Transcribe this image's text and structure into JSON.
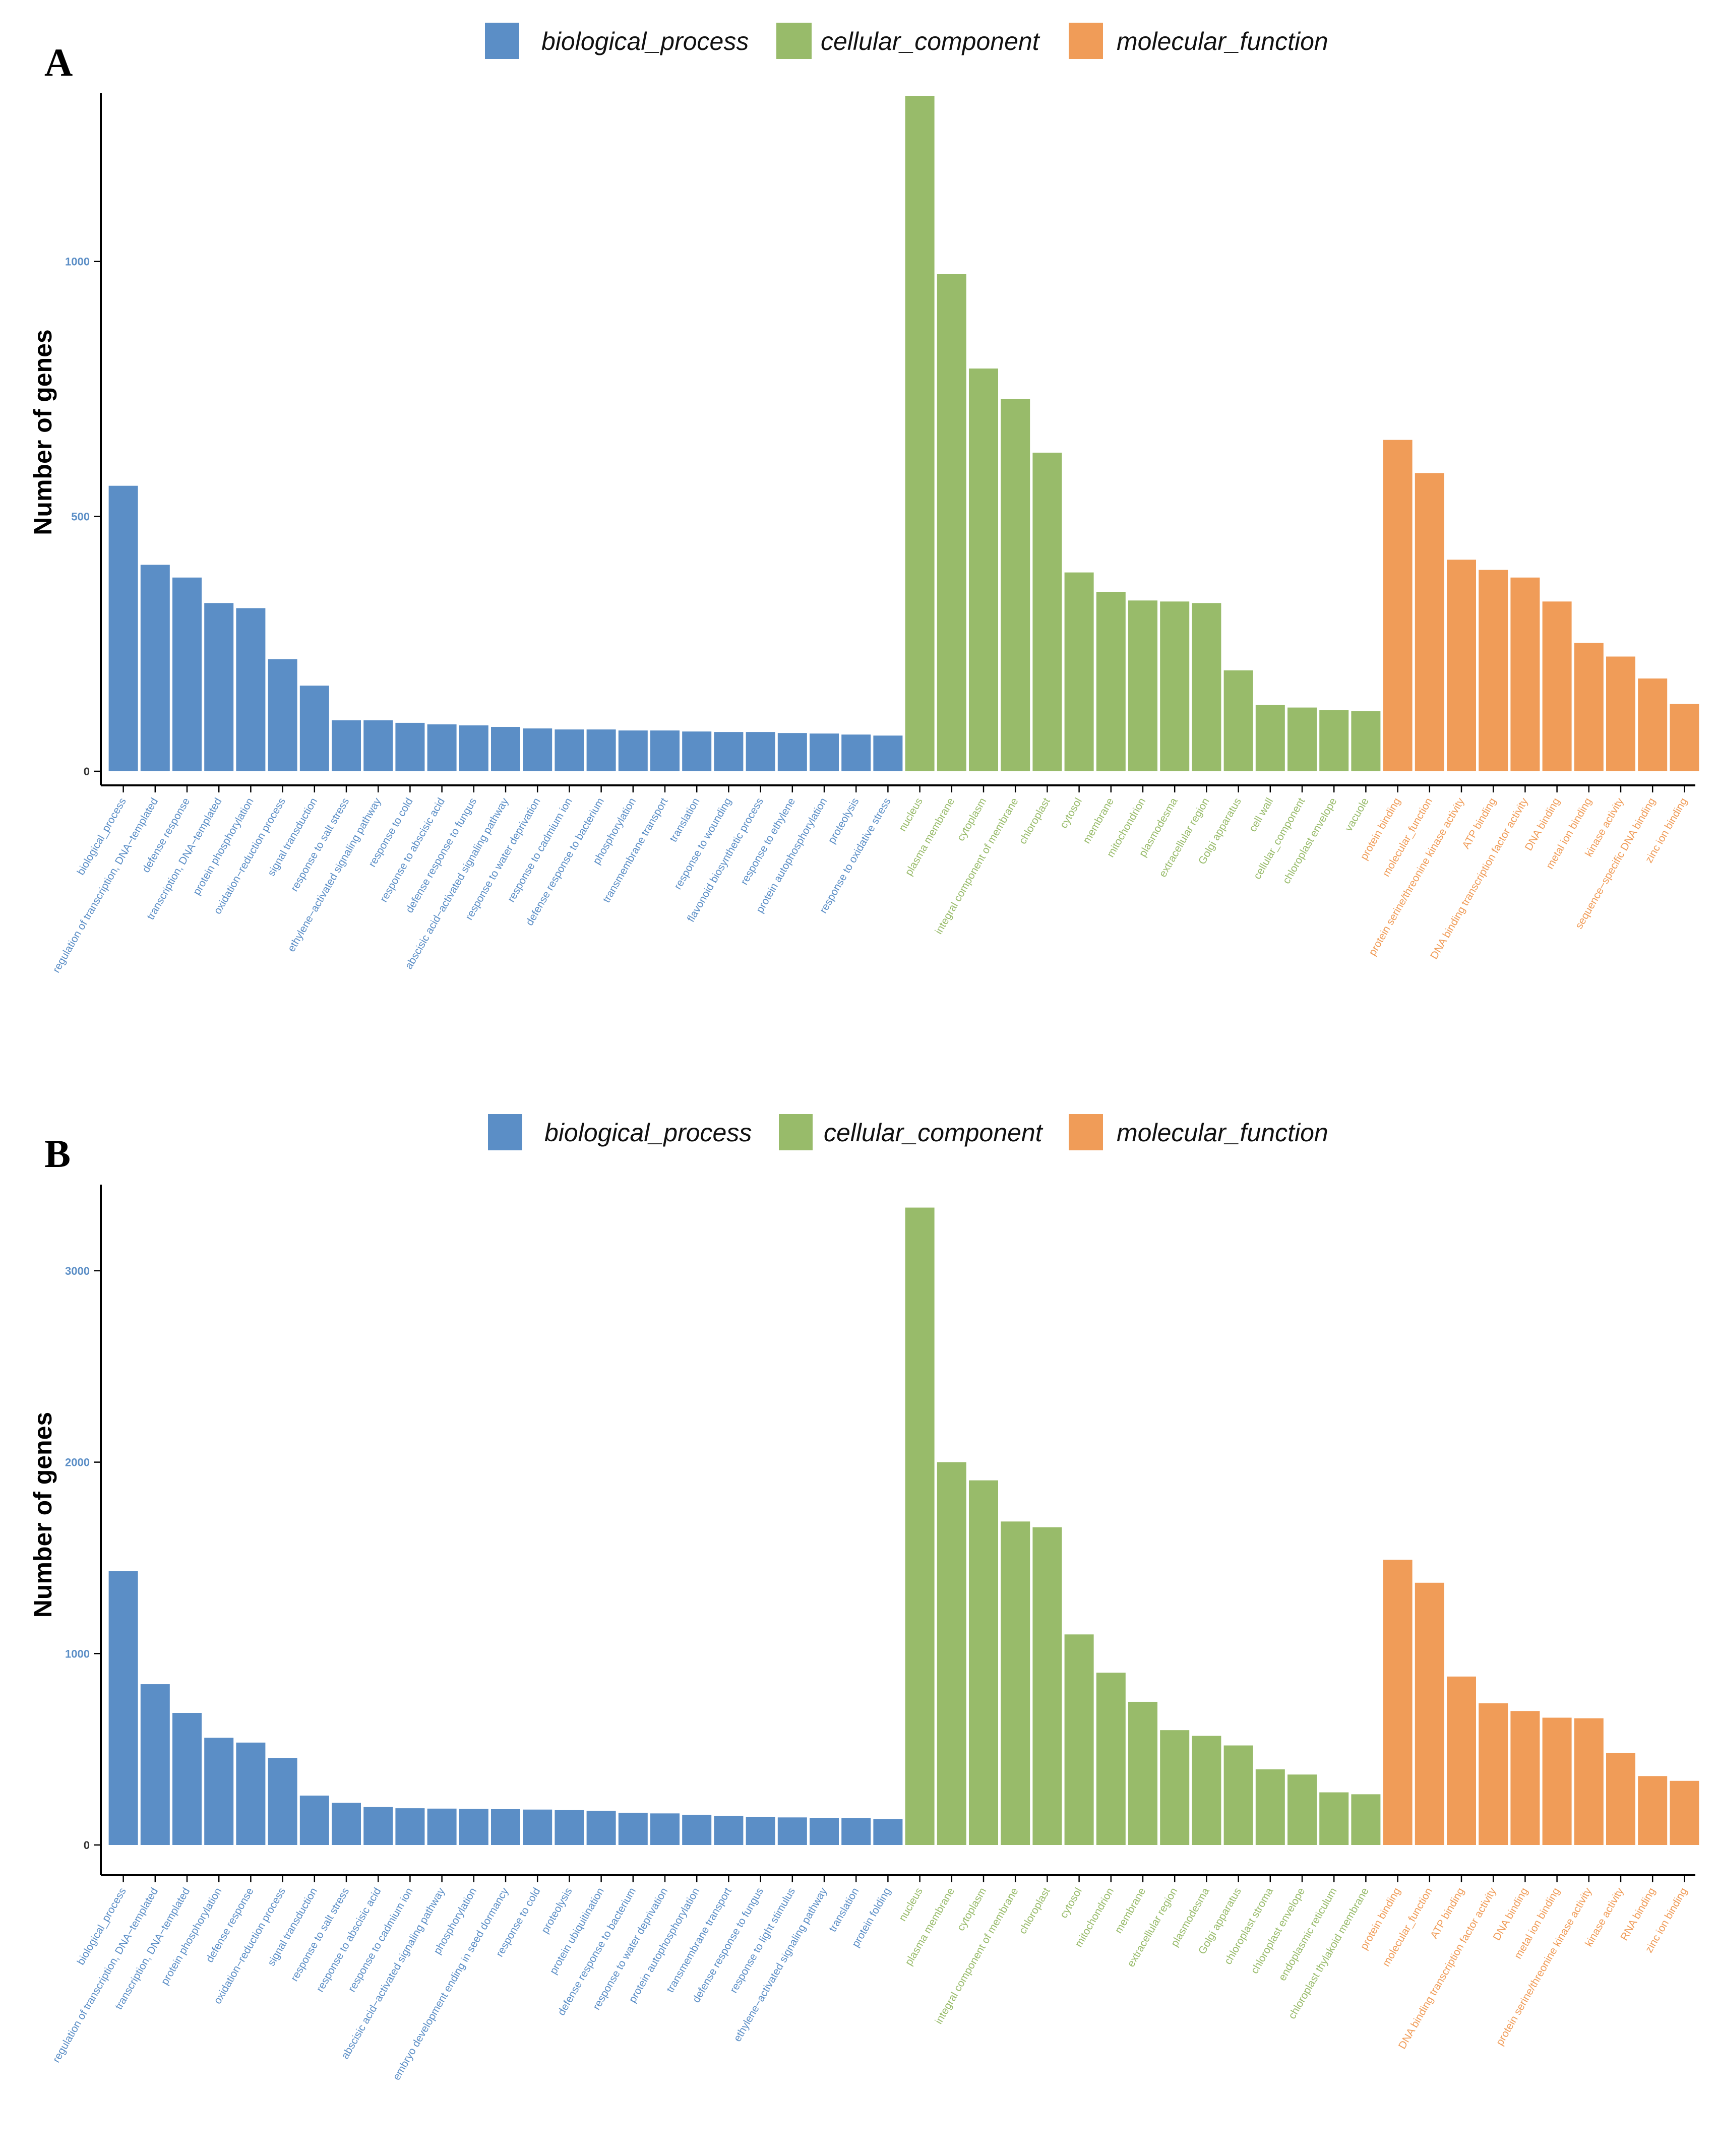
{
  "colors": {
    "biological_process": "#5b8ec6",
    "cellular_component": "#98bb6a",
    "molecular_function": "#f09c58"
  },
  "chart_data": [
    {
      "panel": "A",
      "type": "bar",
      "legend": [
        "biological_process",
        "cellular_component",
        "molecular_function"
      ],
      "legend_position": "top",
      "ylabel": "Number of genes",
      "xlabel": "",
      "ylim": [
        0,
        1330
      ],
      "yticks": [
        0,
        500,
        1000
      ],
      "grid": false,
      "categories": [
        "biological_process",
        "regulation of transcription, DNA−templated",
        "defense response",
        "transcription, DNA−templated",
        "protein phosphorylation",
        "oxidation−reduction process",
        "signal transduction",
        "response to salt stress",
        "ethylene−activated signaling pathway",
        "response to cold",
        "response to abscisic acid",
        "defense response to fungus",
        "abscisic acid−activated signaling pathway",
        "response to water deprivation",
        "response to cadmium ion",
        "defense response to bacterium",
        "phosphorylation",
        "transmembrane transport",
        "translation",
        "response to wounding",
        "flavonoid biosynthetic process",
        "response to ethylene",
        "protein autophosphorylation",
        "proteolysis",
        "response to oxidative stress",
        "nucleus",
        "plasma membrane",
        "cytoplasm",
        "integral component of membrane",
        "chloroplast",
        "cytosol",
        "membrane",
        "mitochondrion",
        "plasmodesma",
        "extracellular region",
        "Golgi apparatus",
        "cell wall",
        "cellular_component",
        "chloroplast envelope",
        "vacuole",
        "protein binding",
        "molecular_function",
        "protein serine/threonine kinase activity",
        "ATP binding",
        "DNA binding transcription factor activity",
        "DNA binding",
        "metal ion binding",
        "kinase activity",
        "sequence−specific DNA binding",
        "zinc ion binding"
      ],
      "groups": [
        "biological_process",
        "biological_process",
        "biological_process",
        "biological_process",
        "biological_process",
        "biological_process",
        "biological_process",
        "biological_process",
        "biological_process",
        "biological_process",
        "biological_process",
        "biological_process",
        "biological_process",
        "biological_process",
        "biological_process",
        "biological_process",
        "biological_process",
        "biological_process",
        "biological_process",
        "biological_process",
        "biological_process",
        "biological_process",
        "biological_process",
        "biological_process",
        "biological_process",
        "cellular_component",
        "cellular_component",
        "cellular_component",
        "cellular_component",
        "cellular_component",
        "cellular_component",
        "cellular_component",
        "cellular_component",
        "cellular_component",
        "cellular_component",
        "cellular_component",
        "cellular_component",
        "cellular_component",
        "cellular_component",
        "cellular_component",
        "molecular_function",
        "molecular_function",
        "molecular_function",
        "molecular_function",
        "molecular_function",
        "molecular_function",
        "molecular_function",
        "molecular_function",
        "molecular_function",
        "molecular_function"
      ],
      "values": [
        560,
        405,
        380,
        330,
        320,
        220,
        168,
        100,
        100,
        95,
        92,
        90,
        87,
        84,
        82,
        82,
        80,
        80,
        78,
        77,
        77,
        75,
        74,
        72,
        70,
        1325,
        975,
        790,
        730,
        625,
        390,
        352,
        335,
        333,
        330,
        198,
        130,
        125,
        120,
        118,
        650,
        585,
        415,
        395,
        380,
        333,
        252,
        225,
        182,
        132
      ]
    },
    {
      "panel": "B",
      "type": "bar",
      "legend": [
        "biological_process",
        "cellular_component",
        "molecular_function"
      ],
      "legend_position": "top",
      "ylabel": "Number of genes",
      "xlabel": "",
      "ylim": [
        0,
        3450
      ],
      "yticks": [
        0,
        1000,
        2000,
        3000
      ],
      "grid": false,
      "categories": [
        "biological_process",
        "regulation of transcription, DNA−templated",
        "transcription, DNA−templated",
        "protein phosphorylation",
        "defense response",
        "oxidation−reduction process",
        "signal transduction",
        "response to salt stress",
        "response to abscisic acid",
        "response to cadmium ion",
        "abscisic acid−activated signaling pathway",
        "phosphorylation",
        "embryo development ending in seed dormancy",
        "response to cold",
        "proteolysis",
        "protein ubiquitination",
        "defense response to bacterium",
        "response to water deprivation",
        "protein autophosphorylation",
        "transmembrane transport",
        "defense response to fungus",
        "response to light stimulus",
        "ethylene−activated signaling pathway",
        "translation",
        "protein folding",
        "nucleus",
        "plasma membrane",
        "cytoplasm",
        "integral component of membrane",
        "chloroplast",
        "cytosol",
        "mitochondrion",
        "membrane",
        "extracellular region",
        "plasmodesma",
        "Golgi apparatus",
        "chloroplast stroma",
        "chloroplast envelope",
        "endoplasmic reticulum",
        "chloroplast thylakoid membrane",
        "protein binding",
        "molecular_function",
        "ATP binding",
        "DNA binding transcription factor activity",
        "DNA binding",
        "metal ion binding",
        "protein serine/threonine kinase activity",
        "kinase activity",
        "RNA binding",
        "zinc ion binding"
      ],
      "groups": [
        "biological_process",
        "biological_process",
        "biological_process",
        "biological_process",
        "biological_process",
        "biological_process",
        "biological_process",
        "biological_process",
        "biological_process",
        "biological_process",
        "biological_process",
        "biological_process",
        "biological_process",
        "biological_process",
        "biological_process",
        "biological_process",
        "biological_process",
        "biological_process",
        "biological_process",
        "biological_process",
        "biological_process",
        "biological_process",
        "biological_process",
        "biological_process",
        "biological_process",
        "cellular_component",
        "cellular_component",
        "cellular_component",
        "cellular_component",
        "cellular_component",
        "cellular_component",
        "cellular_component",
        "cellular_component",
        "cellular_component",
        "cellular_component",
        "cellular_component",
        "cellular_component",
        "cellular_component",
        "cellular_component",
        "cellular_component",
        "molecular_function",
        "molecular_function",
        "molecular_function",
        "molecular_function",
        "molecular_function",
        "molecular_function",
        "molecular_function",
        "molecular_function",
        "molecular_function",
        "molecular_function"
      ],
      "values": [
        1430,
        840,
        690,
        560,
        535,
        455,
        258,
        220,
        198,
        192,
        190,
        188,
        187,
        185,
        182,
        178,
        168,
        165,
        158,
        152,
        146,
        144,
        142,
        140,
        135,
        3330,
        2000,
        1905,
        1690,
        1660,
        1100,
        900,
        748,
        600,
        570,
        520,
        395,
        368,
        275,
        265,
        1490,
        1370,
        880,
        740,
        700,
        665,
        662,
        480,
        360,
        335
      ]
    }
  ]
}
